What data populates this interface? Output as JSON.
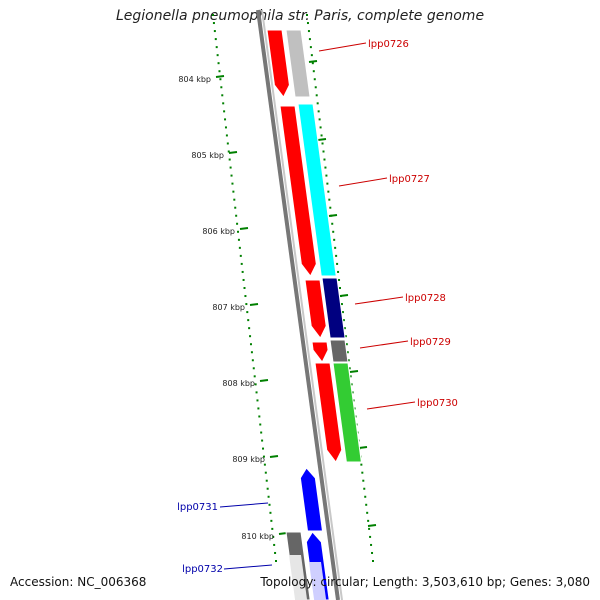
{
  "title": "Legionella pneumophila str. Paris, complete genome",
  "footer": {
    "accession": "Accession: NC_006368",
    "topology": "Topology: circular; Length: 3,503,610 bp; Genes: 3,080"
  },
  "ticks": [
    {
      "label": "804 kbp"
    },
    {
      "label": "805 kbp"
    },
    {
      "label": "806 kbp"
    },
    {
      "label": "807 kbp"
    },
    {
      "label": "808 kbp"
    },
    {
      "label": "809 kbp"
    },
    {
      "label": "810 kbp"
    }
  ],
  "genes": [
    {
      "label": "lpp0726",
      "strand": "+",
      "cds_color": "#ff0000",
      "hit_color": "#c0c0c0",
      "label_color": "#cc0000"
    },
    {
      "label": "lpp0727",
      "strand": "+",
      "cds_color": "#ff0000",
      "hit_color": "#00ffff",
      "label_color": "#cc0000"
    },
    {
      "label": "lpp0728",
      "strand": "+",
      "cds_color": "#ff0000",
      "hit_color": "#000080",
      "label_color": "#cc0000"
    },
    {
      "label": "lpp0729",
      "strand": "+",
      "cds_color": "#ff0000",
      "hit_color": "#666666",
      "label_color": "#cc0000"
    },
    {
      "label": "lpp0730",
      "strand": "+",
      "cds_color": "#ff0000",
      "hit_color": "#33cc33",
      "label_color": "#cc0000"
    },
    {
      "label": "lpp0731",
      "strand": "-",
      "cds_color": "#0000ff",
      "hit_color": "",
      "label_color": "#0000aa"
    },
    {
      "label": "lpp0732",
      "strand": "-",
      "cds_color": "#0000ff",
      "hit_color": "#666666",
      "label_color": "#0000aa"
    }
  ]
}
